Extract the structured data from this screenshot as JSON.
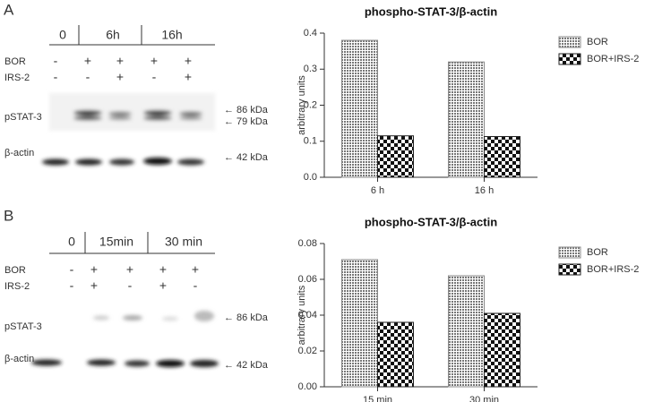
{
  "chart_data": [
    {
      "type": "bar",
      "title": "phospho-STAT-3/β-actin",
      "y_label": "arbitrary units",
      "categories": [
        "6 h",
        "16 h"
      ],
      "series": [
        {
          "name": "BOR",
          "color": "#888888",
          "pattern": "dots",
          "values": [
            0.38,
            0.32
          ]
        },
        {
          "name": "BOR+IRS-2",
          "color": "#222222",
          "pattern": "checker",
          "values": [
            0.115,
            0.113
          ]
        }
      ],
      "ylim": [
        0,
        0.4
      ],
      "yticks": [
        {
          "value": 0,
          "label": "0.0"
        },
        0.1,
        0.2,
        0.3,
        0.4
      ],
      "legend": "right"
    },
    {
      "type": "bar",
      "title": "phospho-STAT-3/β-actin",
      "y_label": "arbitrary units",
      "categories": [
        "15 min",
        "30 min"
      ],
      "series": [
        {
          "name": "BOR",
          "color": "#888888",
          "pattern": "dots",
          "values": [
            0.071,
            0.062
          ]
        },
        {
          "name": "BOR+IRS-2",
          "color": "#222222",
          "pattern": "checker",
          "values": [
            0.036,
            0.041
          ]
        }
      ],
      "ylim": [
        0,
        0.08
      ],
      "yticks": [
        {
          "value": 0,
          "label": "0.00"
        },
        0.02,
        0.04,
        0.06,
        0.08
      ],
      "legend": "right"
    }
  ],
  "blots": [
    {
      "panel": "A",
      "times": [
        "0",
        "6h",
        "16h"
      ],
      "rows": [
        {
          "name": "BOR",
          "signs": [
            "-",
            "+",
            "+",
            "+",
            "+"
          ]
        },
        {
          "name": "IRS-2",
          "signs": [
            "-",
            "-",
            "+",
            "-",
            "+"
          ]
        }
      ],
      "bands": [
        {
          "name": "pSTAT-3",
          "markers": [
            "← 86 kDa",
            "← 79 kDa"
          ]
        },
        {
          "name": "β-actin",
          "markers": [
            "← 42 kDa"
          ]
        }
      ]
    },
    {
      "panel": "B",
      "times": [
        "0",
        "15min",
        "30 min"
      ],
      "rows": [
        {
          "name": "BOR",
          "signs": [
            "-",
            "+",
            "+",
            "+",
            "+"
          ]
        },
        {
          "name": "IRS-2",
          "signs": [
            "-",
            "+",
            "-",
            "+",
            "-"
          ]
        }
      ],
      "bands": [
        {
          "name": "pSTAT-3",
          "markers": [
            "← 86 kDa"
          ]
        },
        {
          "name": "β-actin",
          "markers": [
            "← 42 kDa"
          ]
        }
      ]
    }
  ]
}
